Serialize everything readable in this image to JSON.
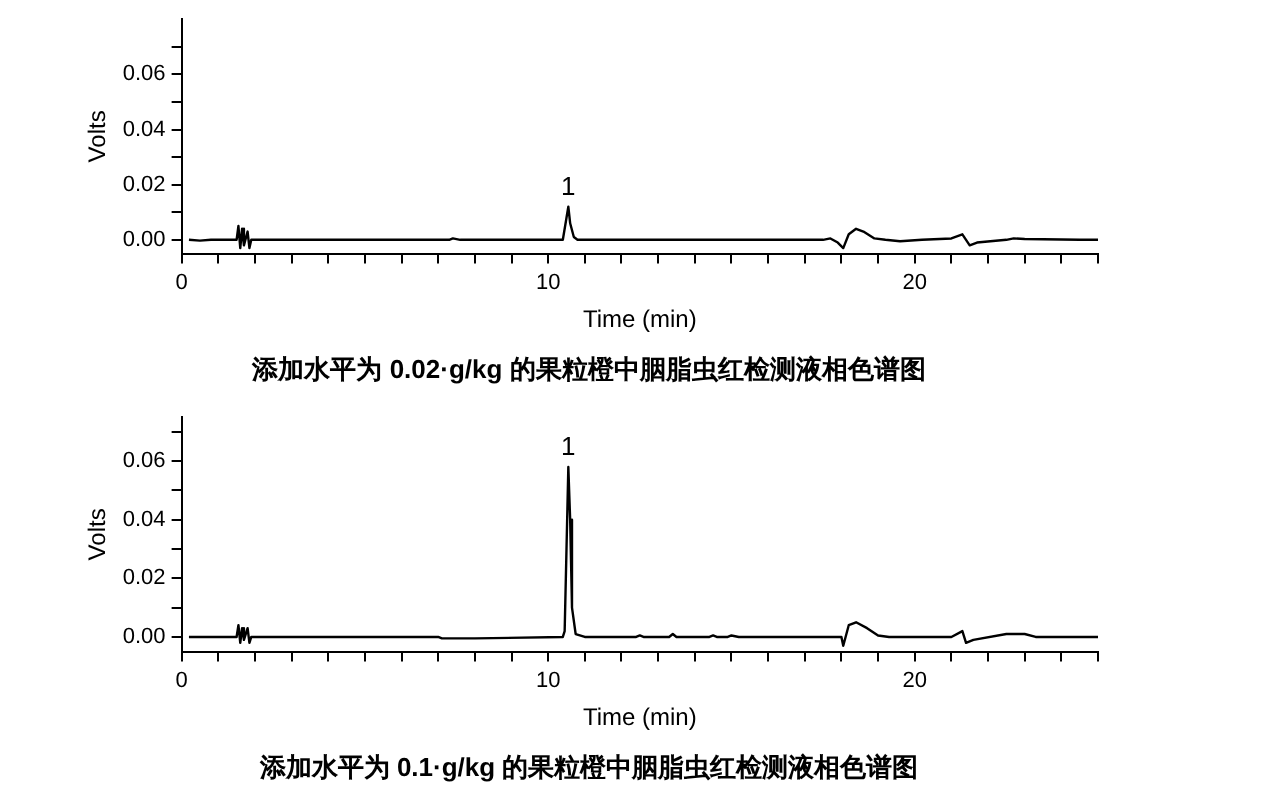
{
  "chart_data": [
    {
      "type": "line",
      "title": "添加水平为 0.02·g/kg 的果粒橙中胭脂虫红检测液相色谱图",
      "xlabel": "Time (min)",
      "ylabel": "Volts",
      "xlim": [
        0,
        25
      ],
      "ylim": [
        -0.005,
        0.08
      ],
      "xticks": [
        0,
        {
          "value": 1,
          "label": null
        },
        {
          "value": 2,
          "label": null
        },
        {
          "value": 3,
          "label": null
        },
        {
          "value": 4,
          "label": null
        },
        {
          "value": 5,
          "label": null
        },
        {
          "value": 6,
          "label": null
        },
        {
          "value": 7,
          "label": null
        },
        {
          "value": 8,
          "label": null
        },
        {
          "value": 9,
          "label": null
        },
        10,
        {
          "value": 11,
          "label": null
        },
        {
          "value": 12,
          "label": null
        },
        {
          "value": 13,
          "label": null
        },
        {
          "value": 14,
          "label": null
        },
        {
          "value": 15,
          "label": null
        },
        {
          "value": 16,
          "label": null
        },
        {
          "value": 17,
          "label": null
        },
        {
          "value": 18,
          "label": null
        },
        {
          "value": 19,
          "label": null
        },
        20,
        {
          "value": 21,
          "label": null
        },
        {
          "value": 22,
          "label": null
        },
        {
          "value": 23,
          "label": null
        },
        {
          "value": 24,
          "label": null
        },
        {
          "value": 25,
          "label": null
        }
      ],
      "yticks": [
        {
          "value": 0,
          "label": "0.00"
        },
        {
          "value": 0.01,
          "label": null
        },
        {
          "value": 0.02,
          "label": "0.02"
        },
        {
          "value": 0.03,
          "label": null
        },
        {
          "value": 0.04,
          "label": "0.04"
        },
        {
          "value": 0.05,
          "label": null
        },
        {
          "value": 0.06,
          "label": "0.06"
        },
        {
          "value": 0.07,
          "label": null
        }
      ],
      "grid": false,
      "legend": false,
      "annotations": [
        {
          "text": "1",
          "x": 10.55,
          "y": 0.012
        }
      ],
      "series": [
        {
          "color": "#000000",
          "x": [
            0.2,
            0.5,
            0.8,
            1.5,
            1.55,
            1.6,
            1.65,
            1.7,
            1.8,
            1.85,
            1.9,
            2.2,
            7.3,
            7.4,
            7.6,
            10.4,
            10.5,
            10.55,
            10.6,
            10.7,
            10.8,
            17.5,
            17.7,
            17.9,
            18.05,
            18.2,
            18.4,
            18.6,
            18.9,
            19.2,
            19.6,
            20.2,
            21.0,
            21.3,
            21.4,
            21.5,
            21.7,
            22.5,
            22.7,
            23,
            24.5,
            25
          ],
          "values": [
            0,
            -0.0003,
            0,
            0,
            0.005,
            -0.003,
            0.004,
            -0.002,
            0.003,
            -0.003,
            0,
            0,
            0,
            0.0005,
            0,
            0,
            0.008,
            0.012,
            0.006,
            0.001,
            0,
            0,
            0.0005,
            -0.001,
            -0.003,
            0.002,
            0.004,
            0.003,
            0.0005,
            0,
            -0.0005,
            0,
            0.0005,
            0.002,
            0,
            -0.002,
            -0.001,
            0,
            0.0005,
            0.0003,
            0,
            0
          ]
        }
      ]
    },
    {
      "type": "line",
      "title": "添加水平为 0.1·g/kg 的果粒橙中胭脂虫红检测液相色谱图",
      "xlabel": "Time (min)",
      "ylabel": "Volts",
      "xlim": [
        0,
        25
      ],
      "ylim": [
        -0.005,
        0.075
      ],
      "xticks": [
        0,
        {
          "value": 1,
          "label": null
        },
        {
          "value": 2,
          "label": null
        },
        {
          "value": 3,
          "label": null
        },
        {
          "value": 4,
          "label": null
        },
        {
          "value": 5,
          "label": null
        },
        {
          "value": 6,
          "label": null
        },
        {
          "value": 7,
          "label": null
        },
        {
          "value": 8,
          "label": null
        },
        {
          "value": 9,
          "label": null
        },
        10,
        {
          "value": 11,
          "label": null
        },
        {
          "value": 12,
          "label": null
        },
        {
          "value": 13,
          "label": null
        },
        {
          "value": 14,
          "label": null
        },
        {
          "value": 15,
          "label": null
        },
        {
          "value": 16,
          "label": null
        },
        {
          "value": 17,
          "label": null
        },
        {
          "value": 18,
          "label": null
        },
        {
          "value": 19,
          "label": null
        },
        20,
        {
          "value": 21,
          "label": null
        },
        {
          "value": 22,
          "label": null
        },
        {
          "value": 23,
          "label": null
        },
        {
          "value": 24,
          "label": null
        },
        {
          "value": 25,
          "label": null
        }
      ],
      "yticks": [
        {
          "value": 0,
          "label": "0.00"
        },
        {
          "value": 0.01,
          "label": null
        },
        {
          "value": 0.02,
          "label": "0.02"
        },
        {
          "value": 0.03,
          "label": null
        },
        {
          "value": 0.04,
          "label": "0.04"
        },
        {
          "value": 0.05,
          "label": null
        },
        {
          "value": 0.06,
          "label": "0.06"
        },
        {
          "value": 0.07,
          "label": null
        }
      ],
      "grid": false,
      "legend": false,
      "annotations": [
        {
          "text": "1",
          "x": 10.55,
          "y": 0.058
        }
      ],
      "series": [
        {
          "color": "#000000",
          "x": [
            0.2,
            1.5,
            1.55,
            1.6,
            1.65,
            1.7,
            1.8,
            1.85,
            1.9,
            2.2,
            7.0,
            7.1,
            7.8,
            8.0,
            10.4,
            10.45,
            10.5,
            10.55,
            10.6,
            10.65,
            10.75,
            11,
            12.4,
            12.5,
            12.6,
            13.3,
            13.4,
            13.5,
            14.4,
            14.5,
            14.6,
            14.9,
            15.0,
            15.2,
            18.0,
            18.05,
            18.2,
            18.4,
            18.7,
            19.0,
            19.3,
            21.0,
            21.3,
            21.4,
            21.6,
            22.5,
            23,
            23.3,
            25
          ],
          "values": [
            0,
            0,
            0.004,
            -0.002,
            0.003,
            -0.001,
            0.003,
            -0.002,
            0,
            0,
            0,
            -0.0005,
            -0.0005,
            -0.0005,
            0,
            0.002,
            0.03,
            0.058,
            0.04,
            0.01,
            0.001,
            0,
            0,
            0.0005,
            0,
            0,
            0.001,
            0,
            0,
            0.0005,
            0,
            0,
            0.0005,
            0,
            0,
            -0.003,
            0.004,
            0.005,
            0.003,
            0.0005,
            0,
            0,
            0.002,
            -0.002,
            -0.001,
            0.001,
            0.001,
            0,
            0
          ]
        }
      ]
    }
  ]
}
